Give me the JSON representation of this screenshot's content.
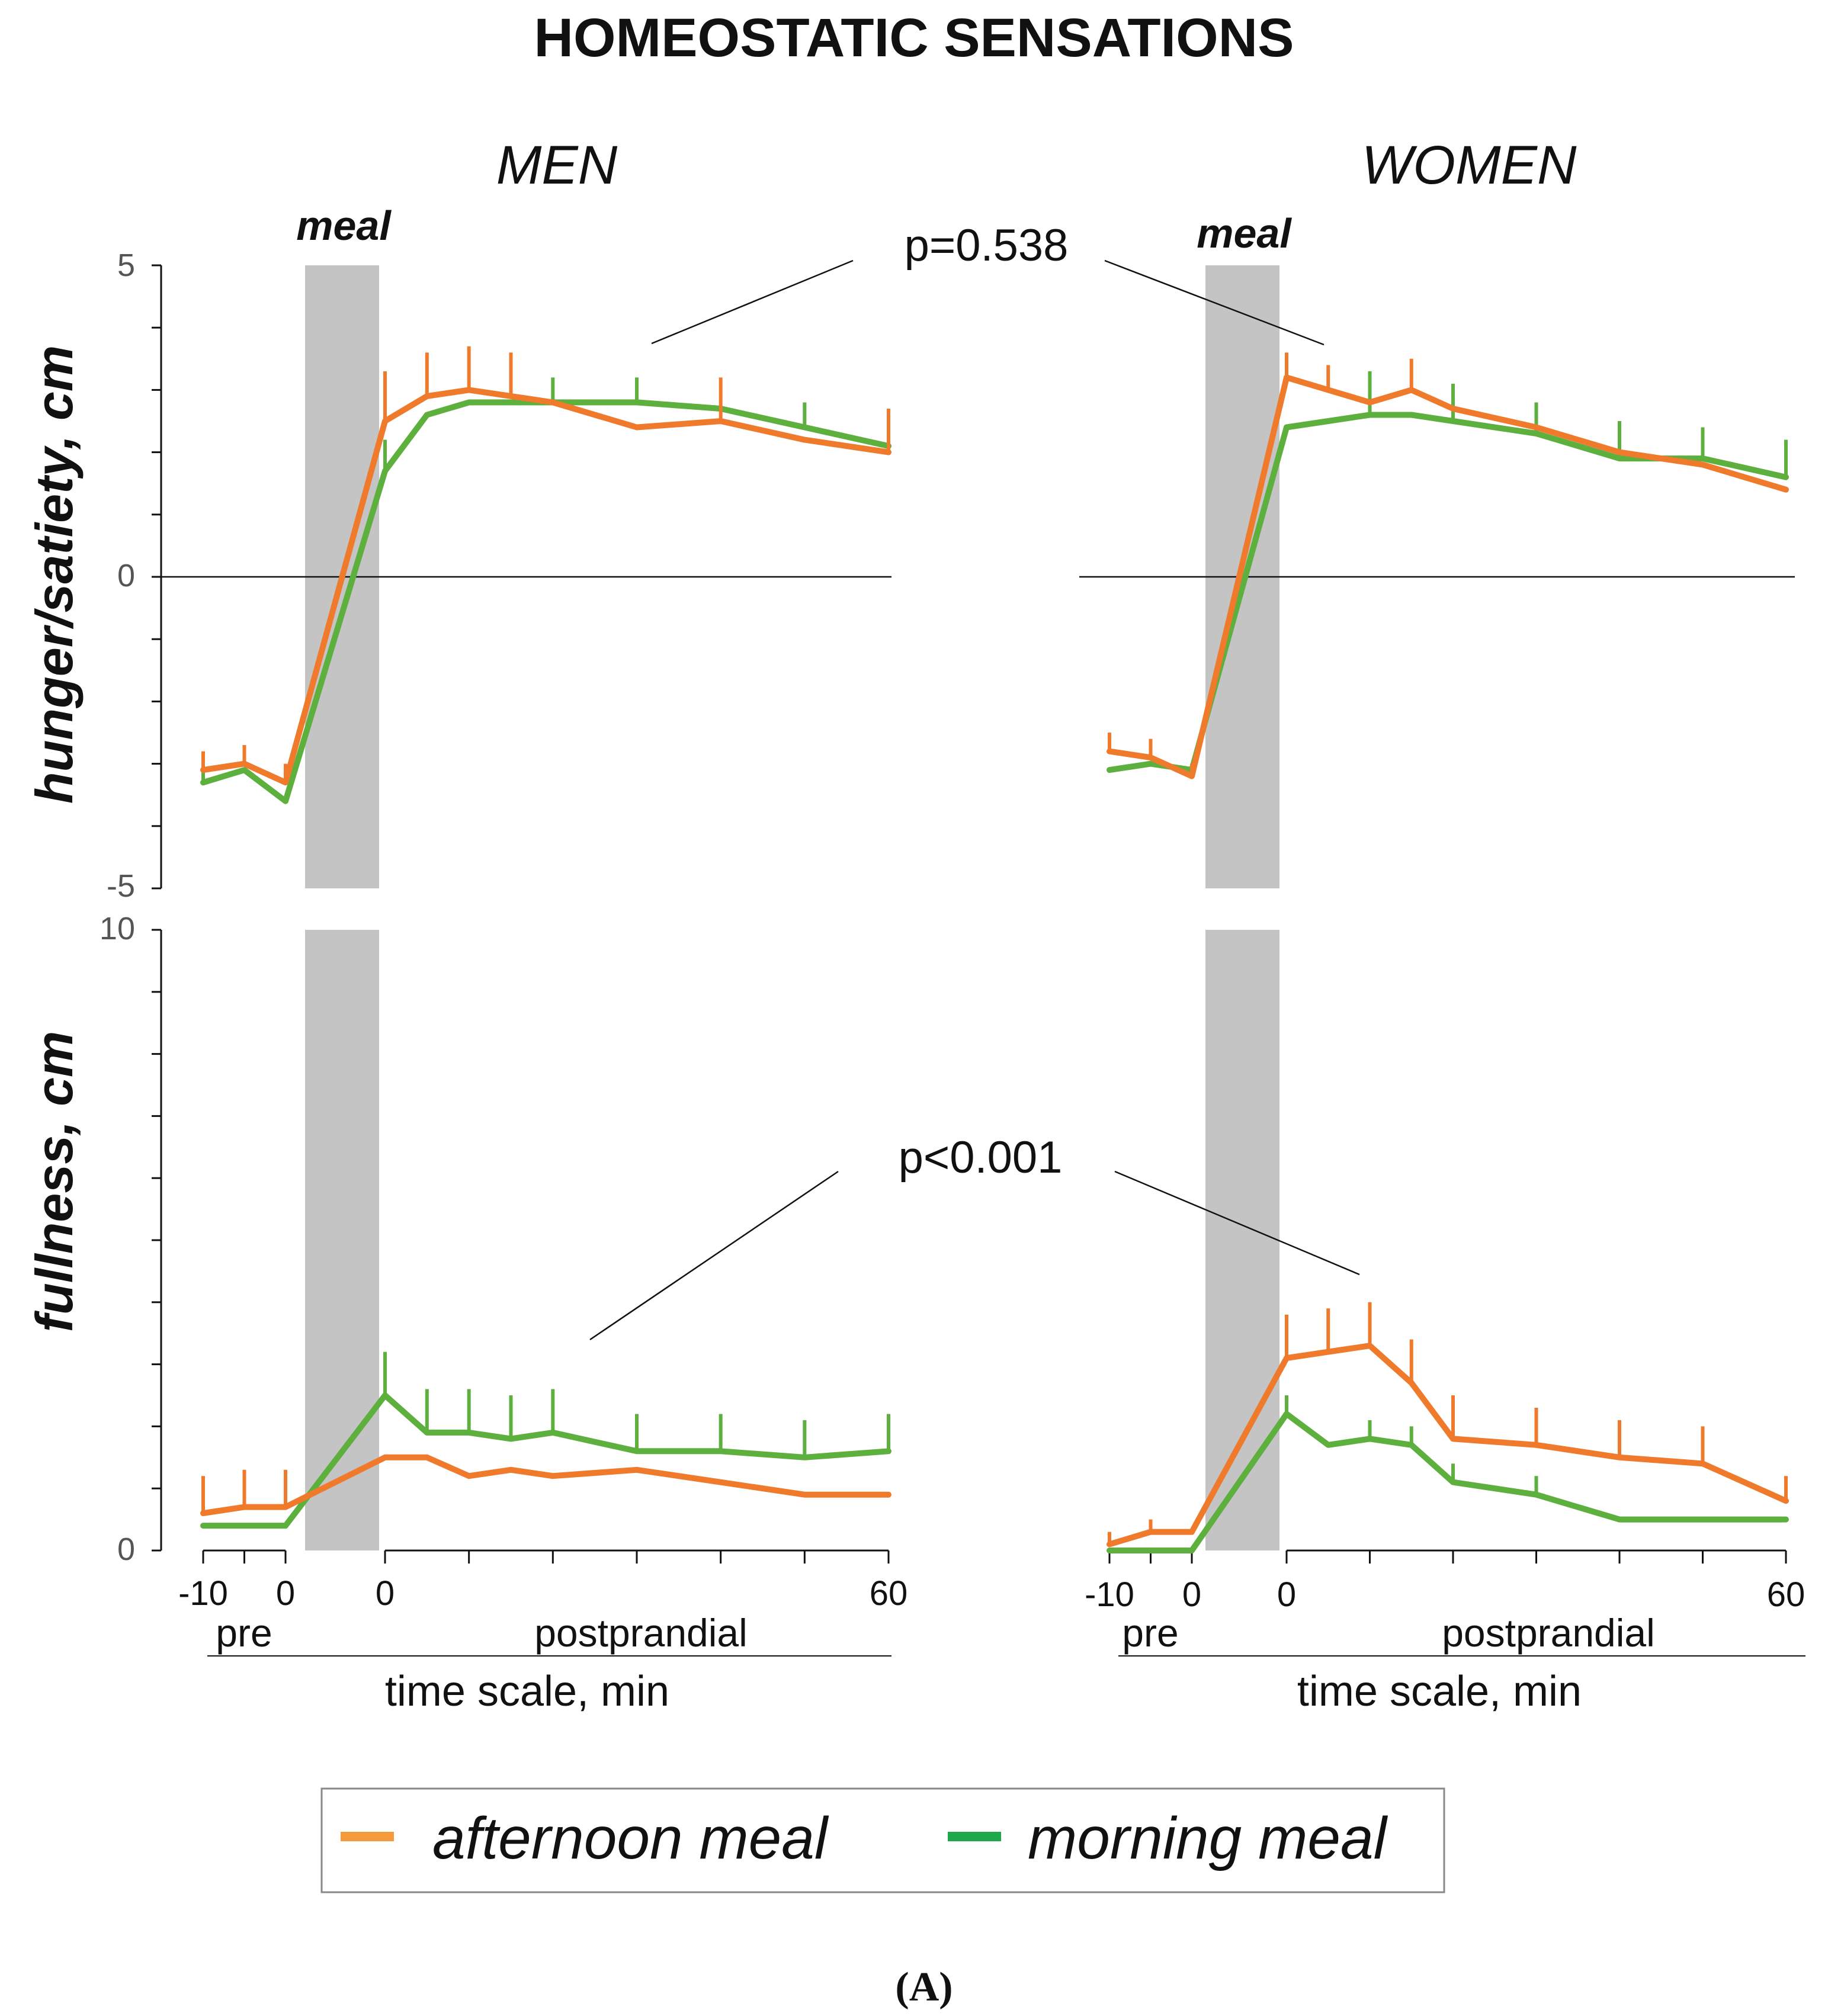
{
  "title": "HOMEOSTATIC SENSATIONS",
  "caption": "(A)",
  "colors": {
    "afternoon": "#F07A2C",
    "morning": "#5DAF3E",
    "meal_band": "#c4c4c4",
    "axis": "#111111"
  },
  "columns": [
    {
      "id": "men",
      "title": "MEN",
      "meal_label": "meal"
    },
    {
      "id": "women",
      "title": "WOMEN",
      "meal_label": "meal"
    }
  ],
  "rows": [
    {
      "id": "hunger",
      "ylabel": "hunger/satiety, cm",
      "ylim": [
        -5,
        5
      ],
      "ticks": [
        "5",
        "0",
        "-5"
      ],
      "pvalue": "p=0.538"
    },
    {
      "id": "fullness",
      "ylabel": "fullness, cm",
      "ylim": [
        0,
        10
      ],
      "ticks": [
        "10",
        "0"
      ],
      "pvalue": "p<0.001"
    }
  ],
  "x_axis": {
    "pre_ticks": [
      "-10",
      "0"
    ],
    "post_ticks": [
      "0",
      "60"
    ],
    "pre_label": "pre",
    "post_label": "postprandial",
    "label": "time scale, min"
  },
  "legend": [
    {
      "key": "afternoon",
      "label": "afternoon meal"
    },
    {
      "key": "morning",
      "label": "morning meal"
    }
  ],
  "chart_data": [
    {
      "type": "line",
      "panel": "MEN",
      "ylabel": "hunger/satiety, cm",
      "ylim": [
        -5,
        5
      ],
      "pre_x": [
        -10,
        -5,
        0
      ],
      "post_x": [
        0,
        5,
        10,
        15,
        20,
        30,
        40,
        50,
        60
      ],
      "series": [
        {
          "name": "afternoon meal",
          "key": "afternoon",
          "pre": [
            -3.1,
            -3.0,
            -3.3
          ],
          "post": [
            2.5,
            2.9,
            3.0,
            2.9,
            2.8,
            2.4,
            2.5,
            2.2,
            2.0
          ],
          "err_pre": [
            0.3,
            0.3,
            0.3
          ],
          "err_post": [
            0.8,
            0.7,
            0.7,
            0.7,
            0.0,
            0.0,
            0.7,
            0.0,
            0.7
          ]
        },
        {
          "name": "morning meal",
          "key": "morning",
          "pre": [
            -3.3,
            -3.1,
            -3.6
          ],
          "post": [
            1.7,
            2.6,
            2.8,
            2.8,
            2.8,
            2.8,
            2.7,
            2.4,
            2.1
          ],
          "err_pre": [
            0.2,
            0.0,
            0.0
          ],
          "err_post": [
            0.5,
            0.0,
            0.0,
            0.0,
            0.4,
            0.4,
            0.0,
            0.4,
            0.0
          ]
        }
      ],
      "annotation": "p=0.538"
    },
    {
      "type": "line",
      "panel": "WOMEN",
      "ylabel": "hunger/satiety, cm",
      "ylim": [
        -5,
        5
      ],
      "pre_x": [
        -10,
        -5,
        0
      ],
      "post_x": [
        0,
        5,
        10,
        15,
        20,
        30,
        40,
        50,
        60
      ],
      "series": [
        {
          "name": "afternoon meal",
          "key": "afternoon",
          "pre": [
            -2.8,
            -2.9,
            -3.2
          ],
          "post": [
            3.2,
            3.0,
            2.8,
            3.0,
            2.7,
            2.4,
            2.0,
            1.8,
            1.4
          ],
          "err_pre": [
            0.3,
            0.3,
            0.2
          ],
          "err_post": [
            0.4,
            0.4,
            0.0,
            0.5,
            0.0,
            0.0,
            0.0,
            0.0,
            0.0
          ]
        },
        {
          "name": "morning meal",
          "key": "morning",
          "pre": [
            -3.1,
            -3.0,
            -3.1
          ],
          "post": [
            2.4,
            2.5,
            2.6,
            2.6,
            2.5,
            2.3,
            1.9,
            1.9,
            1.6
          ],
          "err_pre": [
            0.0,
            0.0,
            0.0
          ],
          "err_post": [
            0.0,
            0.0,
            0.7,
            0.0,
            0.6,
            0.5,
            0.6,
            0.5,
            0.6
          ]
        }
      ],
      "annotation": "p=0.538"
    },
    {
      "type": "line",
      "panel": "MEN",
      "ylabel": "fullness, cm",
      "ylim": [
        0,
        10
      ],
      "pre_x": [
        -10,
        -5,
        0
      ],
      "post_x": [
        0,
        5,
        10,
        15,
        20,
        30,
        40,
        50,
        60
      ],
      "series": [
        {
          "name": "afternoon meal",
          "key": "afternoon",
          "pre": [
            0.6,
            0.7,
            0.7
          ],
          "post": [
            1.5,
            1.5,
            1.2,
            1.3,
            1.2,
            1.3,
            1.1,
            0.9,
            0.9
          ],
          "err_pre": [
            0.6,
            0.6,
            0.6
          ],
          "err_post": [
            0.0,
            0.0,
            0.0,
            0.0,
            0.0,
            0.0,
            0.0,
            0.0,
            0.0
          ]
        },
        {
          "name": "morning meal",
          "key": "morning",
          "pre": [
            0.4,
            0.4,
            0.4
          ],
          "post": [
            2.5,
            1.9,
            1.9,
            1.8,
            1.9,
            1.6,
            1.6,
            1.5,
            1.6
          ],
          "err_pre": [
            0.0,
            0.0,
            0.0
          ],
          "err_post": [
            0.7,
            0.7,
            0.7,
            0.7,
            0.7,
            0.6,
            0.6,
            0.6,
            0.6
          ]
        }
      ],
      "annotation": "p<0.001"
    },
    {
      "type": "line",
      "panel": "WOMEN",
      "ylabel": "fullness, cm",
      "ylim": [
        0,
        10
      ],
      "pre_x": [
        -10,
        -5,
        0
      ],
      "post_x": [
        0,
        5,
        10,
        15,
        20,
        30,
        40,
        50,
        60
      ],
      "series": [
        {
          "name": "afternoon meal",
          "key": "afternoon",
          "pre": [
            0.1,
            0.3,
            0.3
          ],
          "post": [
            3.1,
            3.2,
            3.3,
            2.7,
            1.8,
            1.7,
            1.5,
            1.4,
            0.8
          ],
          "err_pre": [
            0.2,
            0.2,
            0.0
          ],
          "err_post": [
            0.7,
            0.7,
            0.7,
            0.7,
            0.7,
            0.6,
            0.6,
            0.6,
            0.4
          ]
        },
        {
          "name": "morning meal",
          "key": "morning",
          "pre": [
            0.0,
            0.0,
            0.0
          ],
          "post": [
            2.2,
            1.7,
            1.8,
            1.7,
            1.1,
            0.9,
            0.5,
            0.5,
            0.5
          ],
          "err_pre": [
            0.0,
            0.0,
            0.0
          ],
          "err_post": [
            0.3,
            0.0,
            0.3,
            0.3,
            0.3,
            0.3,
            0.0,
            0.0,
            0.0
          ]
        }
      ],
      "annotation": "p<0.001"
    }
  ]
}
